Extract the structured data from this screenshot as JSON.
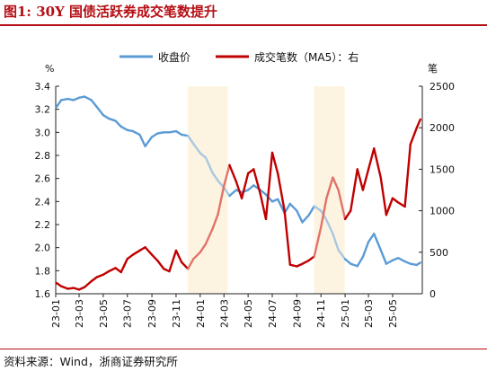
{
  "header": {
    "title": "图1:  30Y 国债活跃券成交笔数提升"
  },
  "footer": {
    "source": "资料来源：Wind，浙商证券研究所"
  },
  "chart_data": {
    "type": "line",
    "title": "",
    "left_axis": {
      "unit": "%",
      "min": 1.6,
      "max": 3.4,
      "ticks": [
        "1.6",
        "1.8",
        "2.0",
        "2.2",
        "2.4",
        "2.6",
        "2.8",
        "3.0",
        "3.2",
        "3.4"
      ]
    },
    "right_axis": {
      "unit": "笔",
      "min": 0,
      "max": 2500,
      "ticks": [
        "0",
        "500",
        "1000",
        "1500",
        "2000",
        "2500"
      ]
    },
    "x_ticks": [
      "23-01",
      "23-03",
      "23-05",
      "23-07",
      "23-09",
      "23-11",
      "24-01",
      "24-03",
      "24-05",
      "24-07",
      "24-09",
      "24-11",
      "25-01",
      "25-03",
      "25-05"
    ],
    "x_range": [
      "2023-01-01",
      "2025-07-15"
    ],
    "highlight_periods": [
      {
        "start": "2023-12-01",
        "end": "2024-03-10"
      },
      {
        "start": "2024-10-15",
        "end": "2024-12-31"
      }
    ],
    "legend": {
      "position": "top"
    },
    "colors": {
      "yield": "#5b9bd5",
      "yield_faded": "#a8c8e2",
      "count": "#c00000",
      "count_faded": "#e0736a",
      "highlight": "#fdf3e1"
    },
    "series": [
      {
        "name": "收盘价",
        "axis": "left",
        "points": [
          [
            "2023-01-03",
            3.22
          ],
          [
            "2023-01-15",
            3.28
          ],
          [
            "2023-02-01",
            3.29
          ],
          [
            "2023-02-15",
            3.28
          ],
          [
            "2023-03-01",
            3.3
          ],
          [
            "2023-03-15",
            3.31
          ],
          [
            "2023-04-01",
            3.28
          ],
          [
            "2023-04-15",
            3.22
          ],
          [
            "2023-05-01",
            3.15
          ],
          [
            "2023-05-15",
            3.12
          ],
          [
            "2023-06-01",
            3.1
          ],
          [
            "2023-06-15",
            3.05
          ],
          [
            "2023-07-01",
            3.02
          ],
          [
            "2023-07-15",
            3.01
          ],
          [
            "2023-08-01",
            2.98
          ],
          [
            "2023-08-15",
            2.88
          ],
          [
            "2023-09-01",
            2.96
          ],
          [
            "2023-09-15",
            2.99
          ],
          [
            "2023-10-01",
            3.0
          ],
          [
            "2023-10-15",
            3.0
          ],
          [
            "2023-11-01",
            3.01
          ],
          [
            "2023-11-15",
            2.98
          ],
          [
            "2023-12-01",
            2.97
          ],
          [
            "2023-12-15",
            2.9
          ],
          [
            "2024-01-01",
            2.82
          ],
          [
            "2024-01-15",
            2.78
          ],
          [
            "2024-02-01",
            2.65
          ],
          [
            "2024-02-15",
            2.58
          ],
          [
            "2024-03-01",
            2.52
          ],
          [
            "2024-03-15",
            2.45
          ],
          [
            "2024-04-01",
            2.5
          ],
          [
            "2024-04-15",
            2.48
          ],
          [
            "2024-05-01",
            2.5
          ],
          [
            "2024-05-15",
            2.54
          ],
          [
            "2024-06-01",
            2.5
          ],
          [
            "2024-06-15",
            2.46
          ],
          [
            "2024-07-01",
            2.4
          ],
          [
            "2024-07-15",
            2.42
          ],
          [
            "2024-08-01",
            2.3
          ],
          [
            "2024-08-15",
            2.38
          ],
          [
            "2024-09-01",
            2.32
          ],
          [
            "2024-09-15",
            2.22
          ],
          [
            "2024-10-01",
            2.28
          ],
          [
            "2024-10-15",
            2.36
          ],
          [
            "2024-11-01",
            2.32
          ],
          [
            "2024-11-15",
            2.24
          ],
          [
            "2024-12-01",
            2.12
          ],
          [
            "2024-12-15",
            1.98
          ],
          [
            "2025-01-01",
            1.9
          ],
          [
            "2025-01-15",
            1.86
          ],
          [
            "2025-02-01",
            1.84
          ],
          [
            "2025-02-15",
            1.92
          ],
          [
            "2025-03-01",
            2.05
          ],
          [
            "2025-03-15",
            2.12
          ],
          [
            "2025-04-01",
            1.98
          ],
          [
            "2025-04-15",
            1.86
          ],
          [
            "2025-05-01",
            1.89
          ],
          [
            "2025-05-15",
            1.91
          ],
          [
            "2025-06-01",
            1.88
          ],
          [
            "2025-06-15",
            1.86
          ],
          [
            "2025-07-01",
            1.85
          ],
          [
            "2025-07-10",
            1.87
          ]
        ]
      },
      {
        "name": "成交笔数（MA5）：右",
        "axis": "right",
        "points": [
          [
            "2023-01-03",
            130
          ],
          [
            "2023-01-15",
            90
          ],
          [
            "2023-02-01",
            60
          ],
          [
            "2023-02-15",
            70
          ],
          [
            "2023-03-01",
            50
          ],
          [
            "2023-03-15",
            80
          ],
          [
            "2023-04-01",
            150
          ],
          [
            "2023-04-15",
            200
          ],
          [
            "2023-05-01",
            230
          ],
          [
            "2023-05-15",
            270
          ],
          [
            "2023-06-01",
            310
          ],
          [
            "2023-06-15",
            260
          ],
          [
            "2023-07-01",
            420
          ],
          [
            "2023-07-15",
            470
          ],
          [
            "2023-08-01",
            520
          ],
          [
            "2023-08-15",
            560
          ],
          [
            "2023-09-01",
            470
          ],
          [
            "2023-09-15",
            400
          ],
          [
            "2023-10-01",
            300
          ],
          [
            "2023-10-15",
            270
          ],
          [
            "2023-11-01",
            520
          ],
          [
            "2023-11-15",
            380
          ],
          [
            "2023-12-01",
            300
          ],
          [
            "2023-12-15",
            420
          ],
          [
            "2024-01-01",
            500
          ],
          [
            "2024-01-15",
            600
          ],
          [
            "2024-02-01",
            780
          ],
          [
            "2024-02-15",
            960
          ],
          [
            "2024-03-01",
            1300
          ],
          [
            "2024-03-15",
            1550
          ],
          [
            "2024-04-01",
            1350
          ],
          [
            "2024-04-15",
            1150
          ],
          [
            "2024-05-01",
            1450
          ],
          [
            "2024-05-15",
            1500
          ],
          [
            "2024-06-01",
            1200
          ],
          [
            "2024-06-15",
            900
          ],
          [
            "2024-07-01",
            1700
          ],
          [
            "2024-07-15",
            1450
          ],
          [
            "2024-08-01",
            1000
          ],
          [
            "2024-08-15",
            350
          ],
          [
            "2024-09-01",
            330
          ],
          [
            "2024-09-15",
            360
          ],
          [
            "2024-10-01",
            400
          ],
          [
            "2024-10-15",
            450
          ],
          [
            "2024-11-01",
            800
          ],
          [
            "2024-11-15",
            1150
          ],
          [
            "2024-12-01",
            1400
          ],
          [
            "2024-12-15",
            1250
          ],
          [
            "2025-01-01",
            900
          ],
          [
            "2025-01-15",
            1000
          ],
          [
            "2025-02-01",
            1500
          ],
          [
            "2025-02-15",
            1250
          ],
          [
            "2025-03-01",
            1500
          ],
          [
            "2025-03-15",
            1750
          ],
          [
            "2025-04-01",
            1400
          ],
          [
            "2025-04-15",
            950
          ],
          [
            "2025-05-01",
            1150
          ],
          [
            "2025-05-15",
            1100
          ],
          [
            "2025-06-01",
            1050
          ],
          [
            "2025-06-15",
            1800
          ],
          [
            "2025-07-01",
            2000
          ],
          [
            "2025-07-10",
            2100
          ]
        ]
      }
    ]
  }
}
